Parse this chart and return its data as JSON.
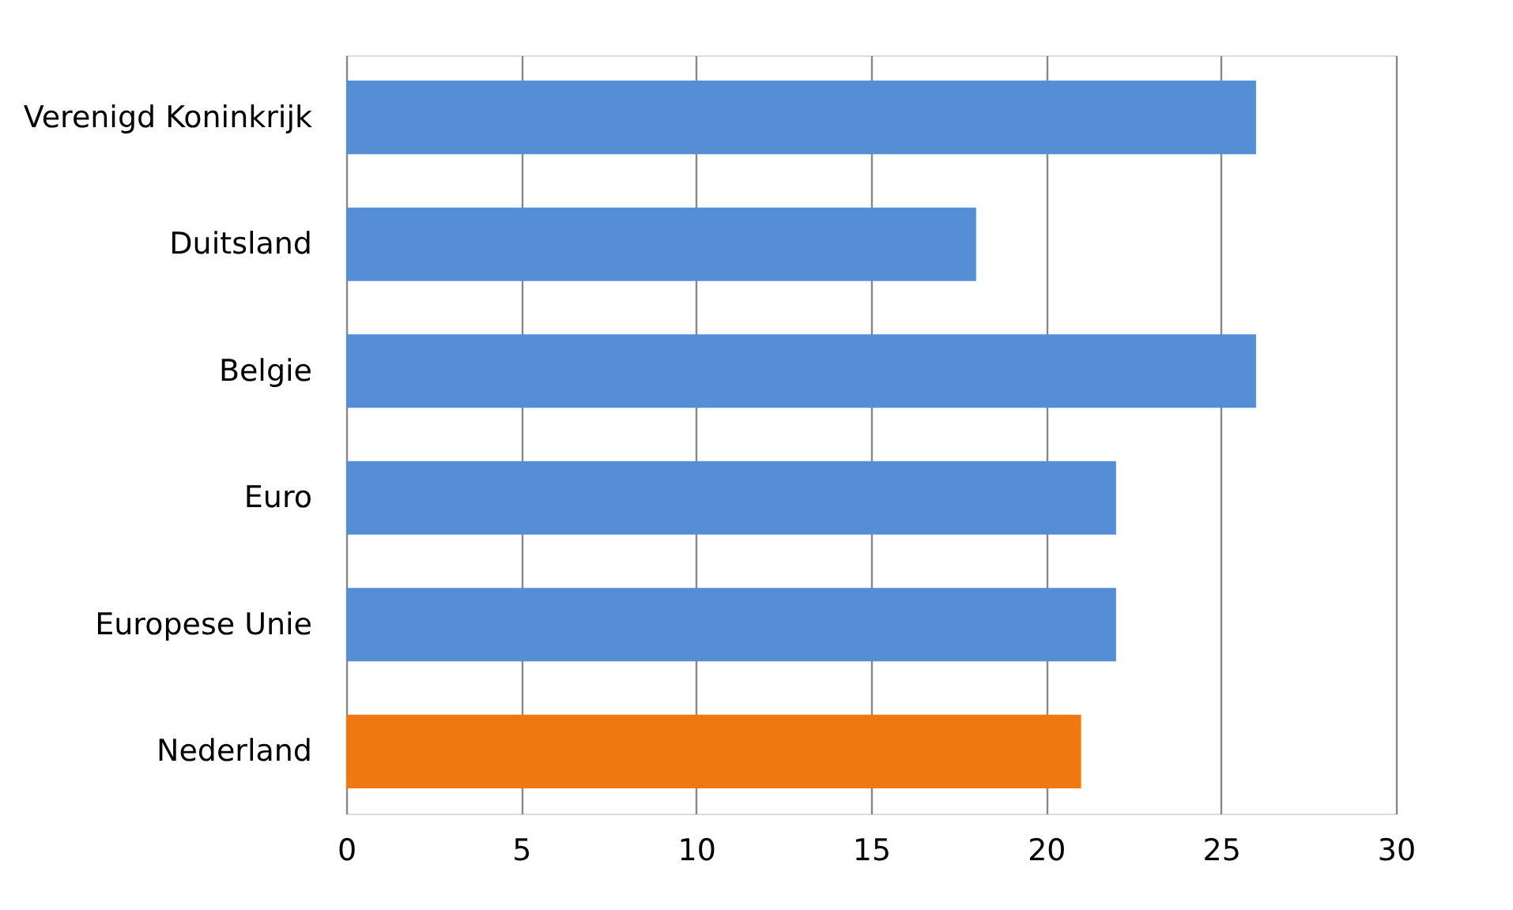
{
  "chart_data": {
    "type": "bar",
    "orientation": "horizontal",
    "categories": [
      "Verenigd Koninkrijk",
      "Duitsland",
      "Belgie",
      "Euro",
      "Europese Unie",
      "Nederland"
    ],
    "values": [
      26,
      18,
      26,
      22,
      22,
      21
    ],
    "colors": [
      "#558ed5",
      "#558ed5",
      "#558ed5",
      "#558ed5",
      "#558ed5",
      "#f07812"
    ],
    "xlim": [
      0,
      30
    ],
    "xticks": [
      0,
      5,
      10,
      15,
      20,
      25,
      30
    ],
    "grid": "x"
  }
}
